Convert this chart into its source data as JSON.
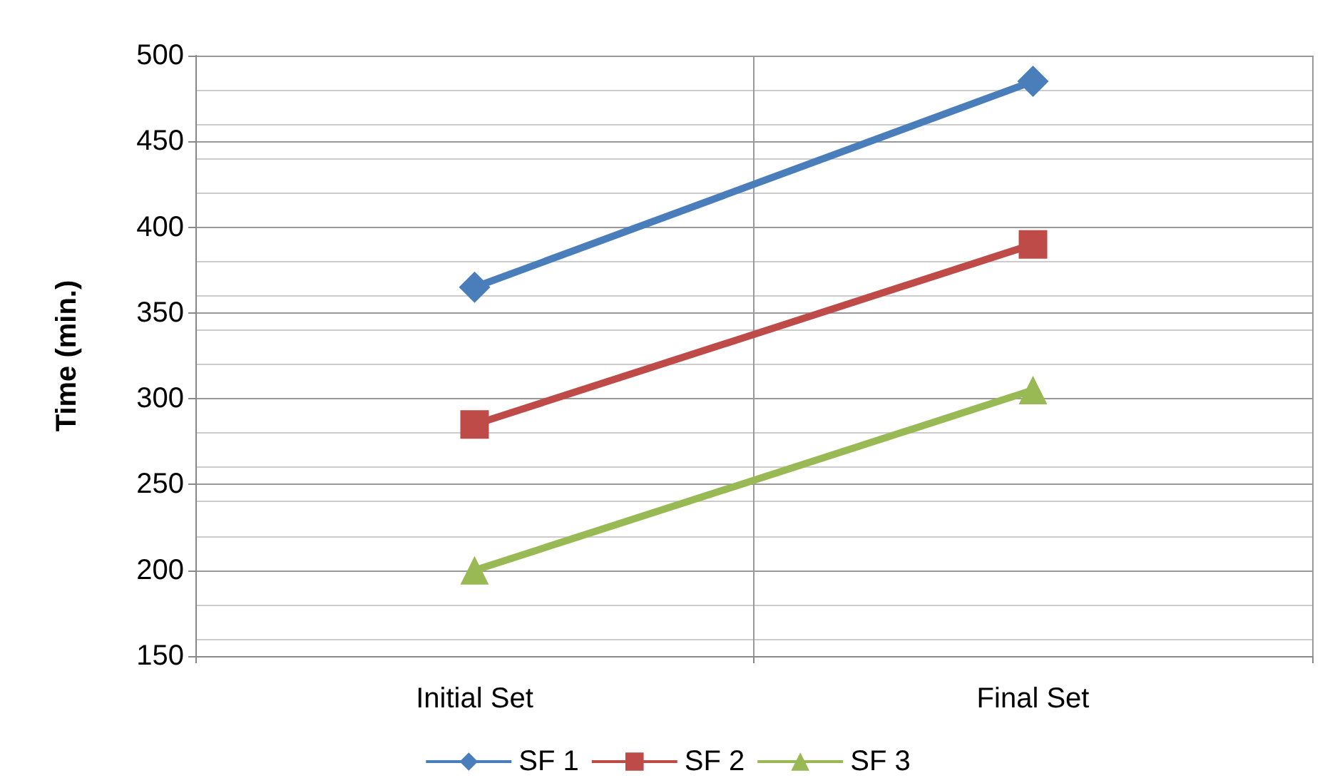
{
  "chart_data": {
    "type": "line",
    "ylabel": "Time (min.)",
    "categories": [
      "Initial Set",
      "Final Set"
    ],
    "series": [
      {
        "name": "SF 1",
        "color": "#4a7ebb",
        "values": [
          365,
          485
        ],
        "marker": "diamond"
      },
      {
        "name": "SF 2",
        "color": "#be4b48",
        "values": [
          285,
          390
        ],
        "marker": "square"
      },
      {
        "name": "SF 3",
        "color": "#98b954",
        "values": [
          200,
          305
        ],
        "marker": "triangle"
      }
    ],
    "ylim": [
      150,
      500
    ],
    "yticks": [
      150,
      200,
      250,
      300,
      350,
      400,
      450,
      500
    ],
    "grid": true,
    "legend": "bottom",
    "line_style": "solid"
  }
}
